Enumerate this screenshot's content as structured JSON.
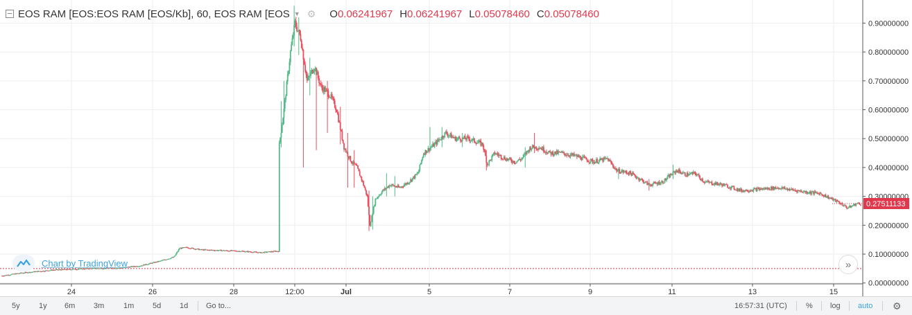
{
  "header": {
    "symbol": "EOS RAM [EOS:EOS RAM [EOS/Kb], 60, EOS RAM [EOS",
    "o_label": "O",
    "o_value": "0.06241967",
    "h_label": "H",
    "h_value": "0.06241967",
    "l_label": "L",
    "l_value": "0.05078460",
    "c_label": "C",
    "c_value": "0.05078460"
  },
  "watermark": {
    "text": "Chart by TradingView"
  },
  "toolbar": {
    "ranges": [
      "5y",
      "1y",
      "6m",
      "3m",
      "1m",
      "5d",
      "1d"
    ],
    "goto": "Go to...",
    "time": "16:57:31 (UTC)",
    "percent": "%",
    "log": "log",
    "auto": "auto",
    "settings_icon": "gear-icon",
    "scroll_icon": "double-chevron-right-icon"
  },
  "colors": {
    "up": "#53b987",
    "down": "#eb4d5c",
    "price_tag": "#e0394d",
    "accent": "#3ca3e0"
  },
  "chart_data": {
    "type": "candlestick",
    "y_ticks": [
      "0.00000000",
      "0.10000000",
      "0.20000000",
      "0.30000000",
      "0.40000000",
      "0.50000000",
      "0.60000000",
      "0.70000000",
      "0.80000000",
      "0.90000000"
    ],
    "x_ticks": [
      "24",
      "26",
      "28",
      "12:00",
      "Jul",
      "5",
      "7",
      "9",
      "11",
      "13",
      "15"
    ],
    "ylim": [
      -0.003,
      0.98
    ],
    "last_price": 0.27511133,
    "last_price_label": "0.27511133",
    "reference_line": 0.05,
    "anchors": [
      [
        0,
        0.025
      ],
      [
        22,
        0.035
      ],
      [
        55,
        0.045
      ],
      [
        95,
        0.05
      ],
      [
        128,
        0.052
      ],
      [
        150,
        0.06
      ],
      [
        170,
        0.075
      ],
      [
        186,
        0.09
      ],
      [
        192,
        0.12
      ],
      [
        200,
        0.123
      ],
      [
        215,
        0.115
      ],
      [
        260,
        0.11
      ],
      [
        280,
        0.105
      ],
      [
        296,
        0.11
      ],
      [
        299,
        0.11
      ],
      [
        300,
        0.48
      ],
      [
        305,
        0.6
      ],
      [
        312,
        0.8
      ],
      [
        317,
        0.9
      ],
      [
        323,
        0.85
      ],
      [
        330,
        0.7
      ],
      [
        338,
        0.75
      ],
      [
        345,
        0.68
      ],
      [
        355,
        0.65
      ],
      [
        362,
        0.6
      ],
      [
        370,
        0.47
      ],
      [
        378,
        0.42
      ],
      [
        384,
        0.4
      ],
      [
        390,
        0.35
      ],
      [
        395,
        0.3
      ],
      [
        398,
        0.2
      ],
      [
        404,
        0.29
      ],
      [
        412,
        0.32
      ],
      [
        420,
        0.34
      ],
      [
        430,
        0.33
      ],
      [
        440,
        0.35
      ],
      [
        450,
        0.38
      ],
      [
        456,
        0.45
      ],
      [
        468,
        0.48
      ],
      [
        480,
        0.52
      ],
      [
        490,
        0.5
      ],
      [
        505,
        0.5
      ],
      [
        520,
        0.48
      ],
      [
        525,
        0.41
      ],
      [
        533,
        0.45
      ],
      [
        545,
        0.43
      ],
      [
        555,
        0.42
      ],
      [
        562,
        0.43
      ],
      [
        572,
        0.47
      ],
      [
        582,
        0.47
      ],
      [
        592,
        0.45
      ],
      [
        605,
        0.45
      ],
      [
        620,
        0.44
      ],
      [
        640,
        0.42
      ],
      [
        655,
        0.43
      ],
      [
        665,
        0.39
      ],
      [
        680,
        0.38
      ],
      [
        700,
        0.34
      ],
      [
        715,
        0.35
      ],
      [
        722,
        0.37
      ],
      [
        730,
        0.39
      ],
      [
        740,
        0.375
      ],
      [
        750,
        0.38
      ],
      [
        760,
        0.35
      ],
      [
        780,
        0.34
      ],
      [
        800,
        0.32
      ],
      [
        840,
        0.33
      ],
      [
        870,
        0.315
      ],
      [
        885,
        0.31
      ],
      [
        905,
        0.28
      ],
      [
        915,
        0.26
      ],
      [
        925,
        0.275
      ],
      [
        929,
        0.275
      ]
    ],
    "spikes": [
      [
        302,
        0.63,
        0.47
      ],
      [
        305,
        0.7,
        0.55
      ],
      [
        316,
        0.96,
        0.82
      ],
      [
        321,
        0.92,
        0.79
      ],
      [
        326,
        0.7,
        0.4
      ],
      [
        333,
        0.78,
        0.65
      ],
      [
        340,
        0.72,
        0.46
      ],
      [
        352,
        0.7,
        0.52
      ],
      [
        366,
        0.61,
        0.48
      ],
      [
        374,
        0.52,
        0.33
      ],
      [
        381,
        0.46,
        0.33
      ],
      [
        397,
        0.32,
        0.18
      ],
      [
        401,
        0.3,
        0.185
      ],
      [
        416,
        0.38,
        0.3
      ],
      [
        425,
        0.37,
        0.3
      ],
      [
        463,
        0.54,
        0.46
      ],
      [
        476,
        0.54,
        0.47
      ],
      [
        498,
        0.52,
        0.47
      ],
      [
        524,
        0.46,
        0.39
      ],
      [
        566,
        0.47,
        0.4
      ],
      [
        576,
        0.52,
        0.45
      ],
      [
        667,
        0.4,
        0.36
      ],
      [
        700,
        0.36,
        0.32
      ],
      [
        726,
        0.41,
        0.36
      ]
    ]
  }
}
